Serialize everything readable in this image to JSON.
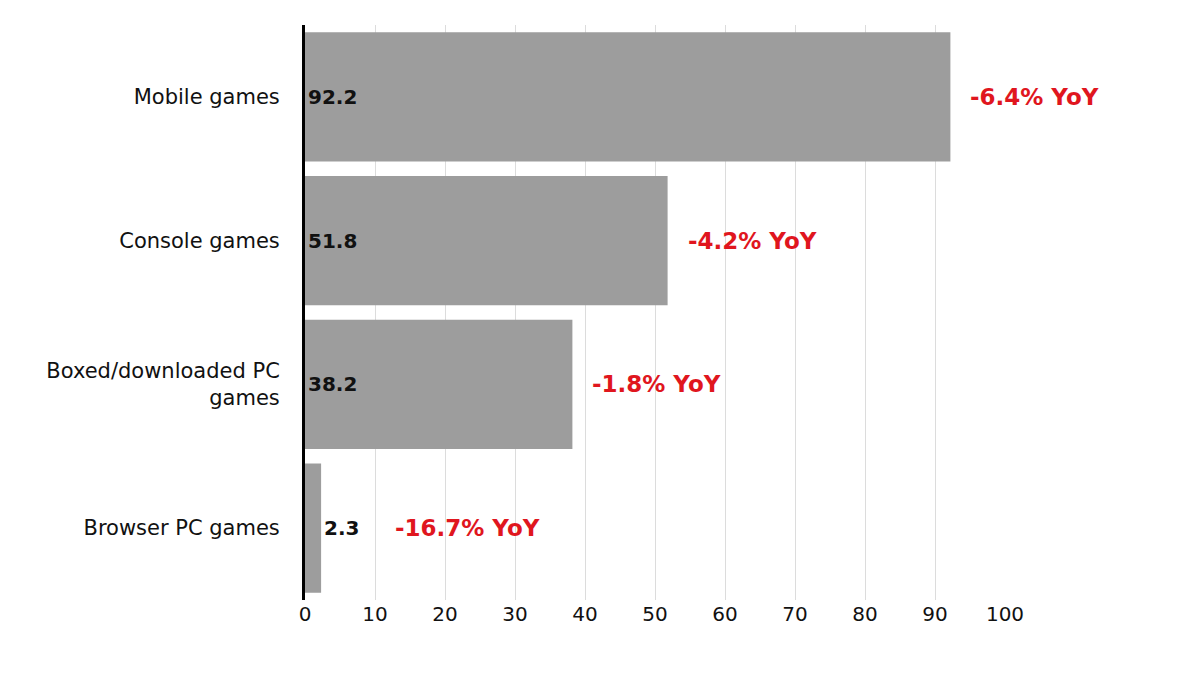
{
  "chart_data": {
    "type": "bar",
    "orientation": "horizontal",
    "categories": [
      "Mobile games",
      "Console games",
      "Boxed/downloaded PC games",
      "Browser PC games"
    ],
    "values": [
      92.2,
      51.8,
      38.2,
      2.3
    ],
    "color": "#9d9d9d",
    "data_labels": true,
    "annotations": [
      "-6.4% YoY",
      "-4.2% YoY",
      "-1.8% YoY",
      "-16.7% YoY"
    ],
    "xlim": [
      0,
      100
    ],
    "xticks": [
      0,
      10,
      20,
      30,
      40,
      50,
      60,
      70,
      80,
      90,
      100
    ],
    "grid": true
  }
}
